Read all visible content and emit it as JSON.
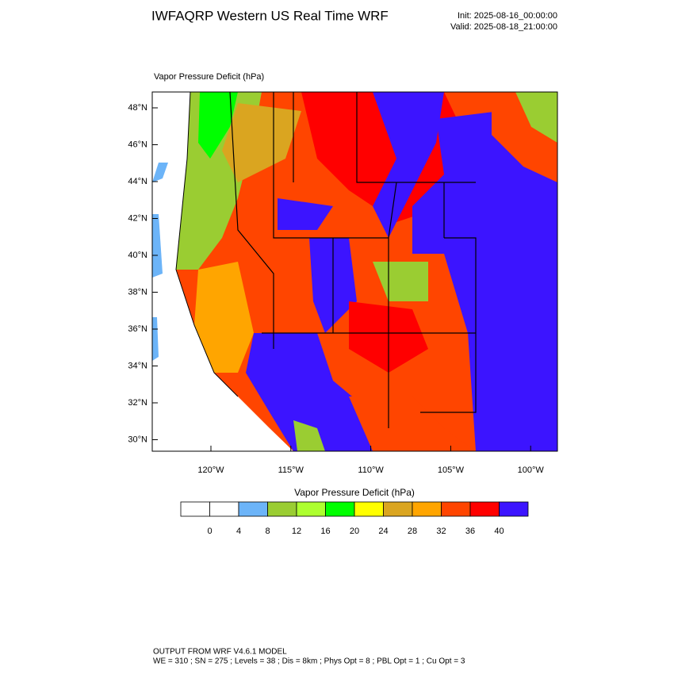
{
  "header": {
    "title": "IWFAQRP Western US Real Time WRF",
    "init": "Init: 2025-08-16_00:00:00",
    "valid": "Valid: 2025-08-18_21:00:00"
  },
  "map": {
    "title": "Vapor Pressure Deficit   (hPa)",
    "lat_labels": [
      "48°N",
      "46°N",
      "44°N",
      "42°N",
      "40°N",
      "38°N",
      "36°N",
      "34°N",
      "32°N",
      "30°N"
    ],
    "lon_labels": [
      "120°W",
      "115°W",
      "110°W",
      "105°W",
      "100°W"
    ]
  },
  "legend": {
    "title": "Vapor Pressure Deficit  (hPa)",
    "colors": [
      "#ffffff",
      "#ffffff",
      "#6cb4f8",
      "#9acd32",
      "#adff2f",
      "#00ff00",
      "#ffff00",
      "#daa520",
      "#ffa500",
      "#ff4500",
      "#ff0000",
      "#3c14ff"
    ],
    "labels": [
      "0",
      "4",
      "8",
      "12",
      "16",
      "20",
      "24",
      "28",
      "32",
      "36",
      "40"
    ]
  },
  "footer": {
    "line1": "OUTPUT FROM WRF V4.6.1 MODEL",
    "line2": "WE = 310 ; SN = 275 ; Levels = 38 ; Dis = 8km ; Phys Opt = 8 ; PBL Opt = 1 ; Cu Opt = 3"
  }
}
